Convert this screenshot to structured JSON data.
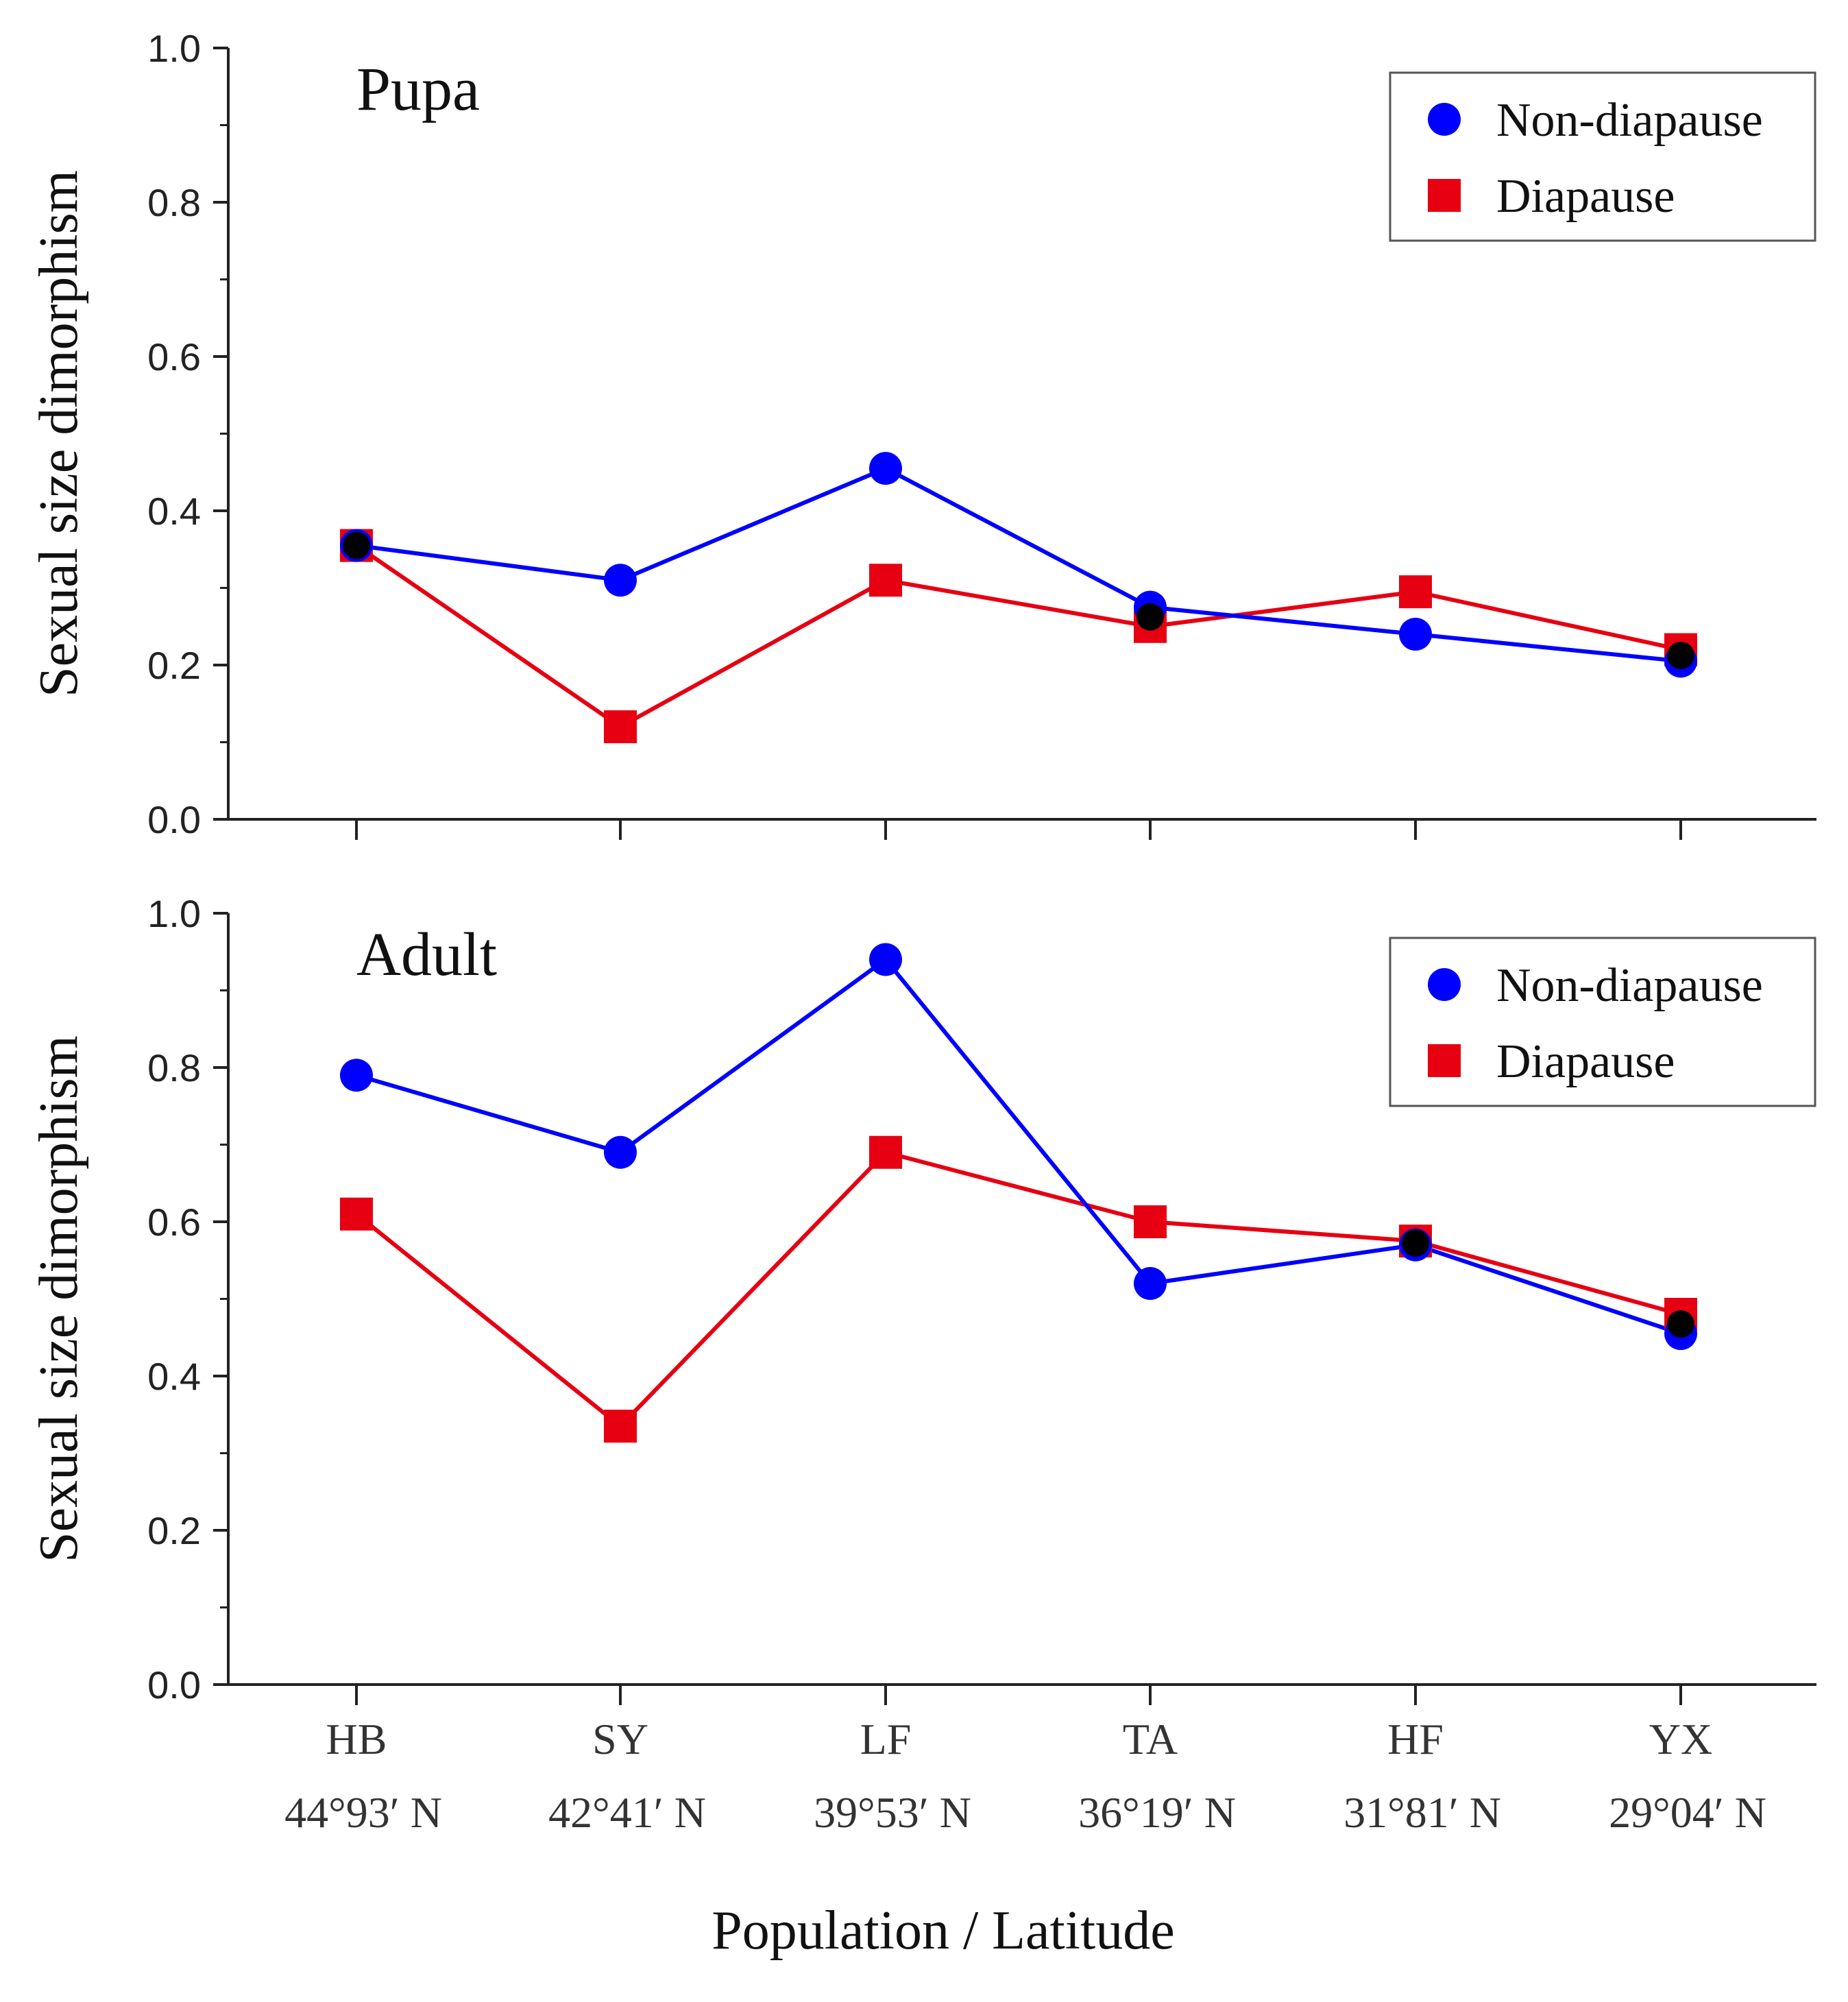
{
  "chart_data": [
    {
      "type": "line",
      "title": "Pupa",
      "xlabel": "",
      "ylabel": "Sexual size dimorphism",
      "ylim": [
        0.0,
        1.0
      ],
      "yticks": [
        "0.0",
        "0.2",
        "0.4",
        "0.6",
        "0.8",
        "1.0"
      ],
      "categories": [
        "HB",
        "SY",
        "LF",
        "TA",
        "HF",
        "YX"
      ],
      "legend_position": "top-right",
      "series": [
        {
          "name": "Non-diapause",
          "marker": "circle",
          "color": "#0000ff",
          "values": [
            0.355,
            0.31,
            0.455,
            0.275,
            0.24,
            0.205
          ]
        },
        {
          "name": "Diapause",
          "marker": "square",
          "color": "#e60012",
          "values": [
            0.355,
            0.12,
            0.31,
            0.25,
            0.295,
            0.22
          ]
        }
      ]
    },
    {
      "type": "line",
      "title": "Adult",
      "xlabel": "Population / Latitude",
      "ylabel": "Sexual size dimorphism",
      "ylim": [
        0.0,
        1.0
      ],
      "yticks": [
        "0.0",
        "0.2",
        "0.4",
        "0.6",
        "0.8",
        "1.0"
      ],
      "categories": [
        "HB",
        "SY",
        "LF",
        "TA",
        "HF",
        "YX"
      ],
      "category_sublabels": [
        "44°93′ N",
        "42°41′ N",
        "39°53′ N",
        "36°19′ N",
        "31°81′ N",
        "29°04′ N"
      ],
      "legend_position": "top-right",
      "series": [
        {
          "name": "Non-diapause",
          "marker": "circle",
          "color": "#0000ff",
          "values": [
            0.79,
            0.69,
            0.94,
            0.52,
            0.57,
            0.455
          ]
        },
        {
          "name": "Diapause",
          "marker": "square",
          "color": "#e60012",
          "values": [
            0.61,
            0.335,
            0.69,
            0.6,
            0.575,
            0.48
          ]
        }
      ]
    }
  ]
}
